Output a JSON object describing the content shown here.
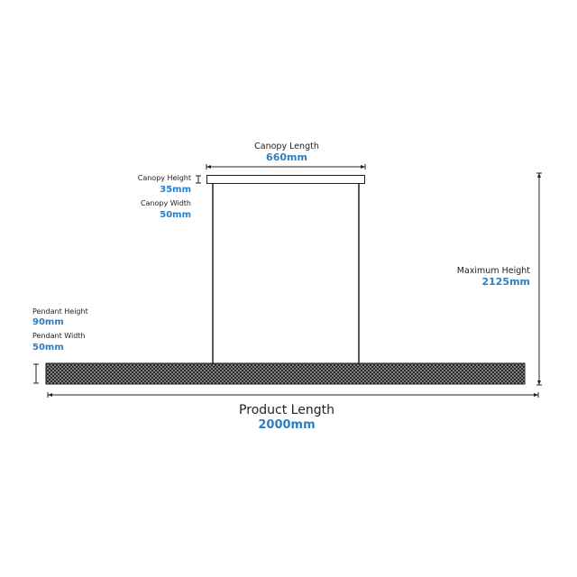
{
  "canopy": {
    "length_label": "Canopy Length",
    "length_value": "660mm",
    "height_label": "Canopy Height",
    "height_value": "35mm",
    "width_label": "Canopy Width",
    "width_value": "50mm"
  },
  "pendant": {
    "height_label": "Pendant Height",
    "height_value": "90mm",
    "width_label": "Pendant Width",
    "width_value": "50mm"
  },
  "maximum": {
    "height_label": "Maximum Height",
    "height_value": "2125mm"
  },
  "product": {
    "length_label": "Product Length",
    "length_value": "2000mm"
  },
  "colors": {
    "accent": "#2a7fc4",
    "line": "#222222"
  }
}
